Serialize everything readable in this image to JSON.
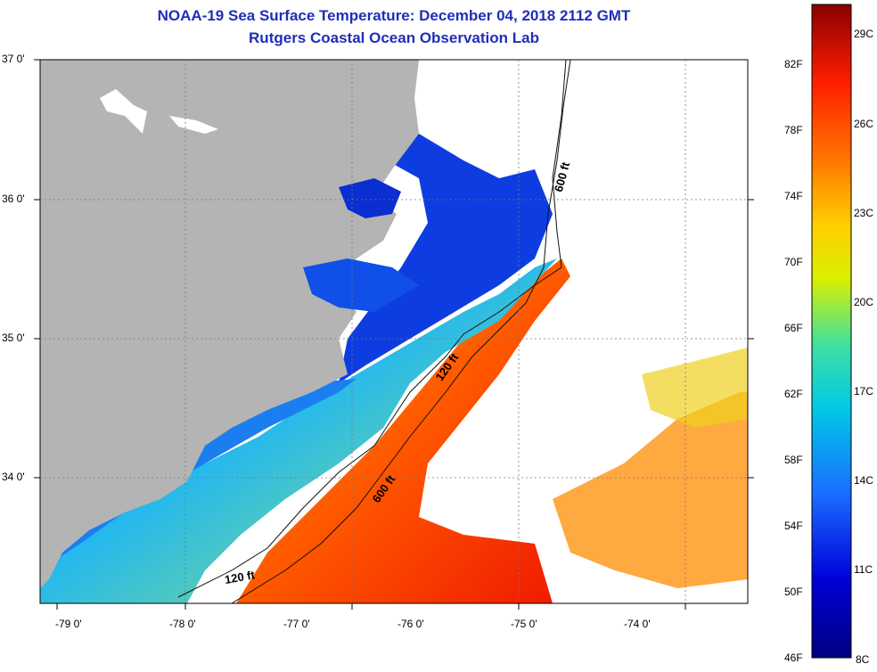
{
  "title": {
    "line1": "NOAA-19 Sea Surface Temperature:  December 04, 2018 2112 GMT",
    "line2": "Rutgers Coastal Ocean Observation Lab"
  },
  "map": {
    "lat_labels": [
      "37 0'",
      "36 0'",
      "35 0'",
      "34 0'"
    ],
    "lon_labels": [
      "-79 0'",
      "-78 0'",
      "-77 0'",
      "-76 0'",
      "-75 0'",
      "-74 0'"
    ],
    "contour_labels": [
      "600 ft",
      "120 ft",
      "600 ft",
      "120 ft"
    ],
    "land_color": "#b4b4b4",
    "cloud_color": "#ffffff"
  },
  "colorbar": {
    "fahrenheit_labels": [
      "82F",
      "78F",
      "74F",
      "70F",
      "66F",
      "62F",
      "58F",
      "54F",
      "50F",
      "46F"
    ],
    "celsius_labels": [
      "29C",
      "26C",
      "23C",
      "20C",
      "17C",
      "14C",
      "11C",
      "8C"
    ],
    "min_f": 46,
    "max_f": 86
  }
}
